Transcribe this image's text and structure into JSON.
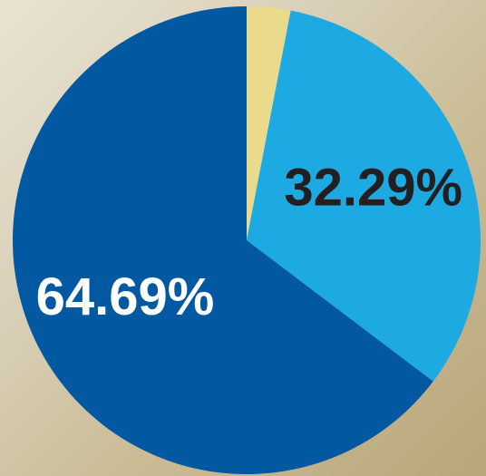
{
  "chart_data": {
    "type": "pie",
    "values": [
      3.02,
      32.29,
      64.69
    ],
    "value_labels": [
      null,
      "32.29%",
      "64.69%"
    ],
    "colors": [
      "#e9da8c",
      "#1da9e1",
      "#0358a2"
    ],
    "label_colors": [
      null,
      "#231f20",
      "#ffffff"
    ]
  }
}
